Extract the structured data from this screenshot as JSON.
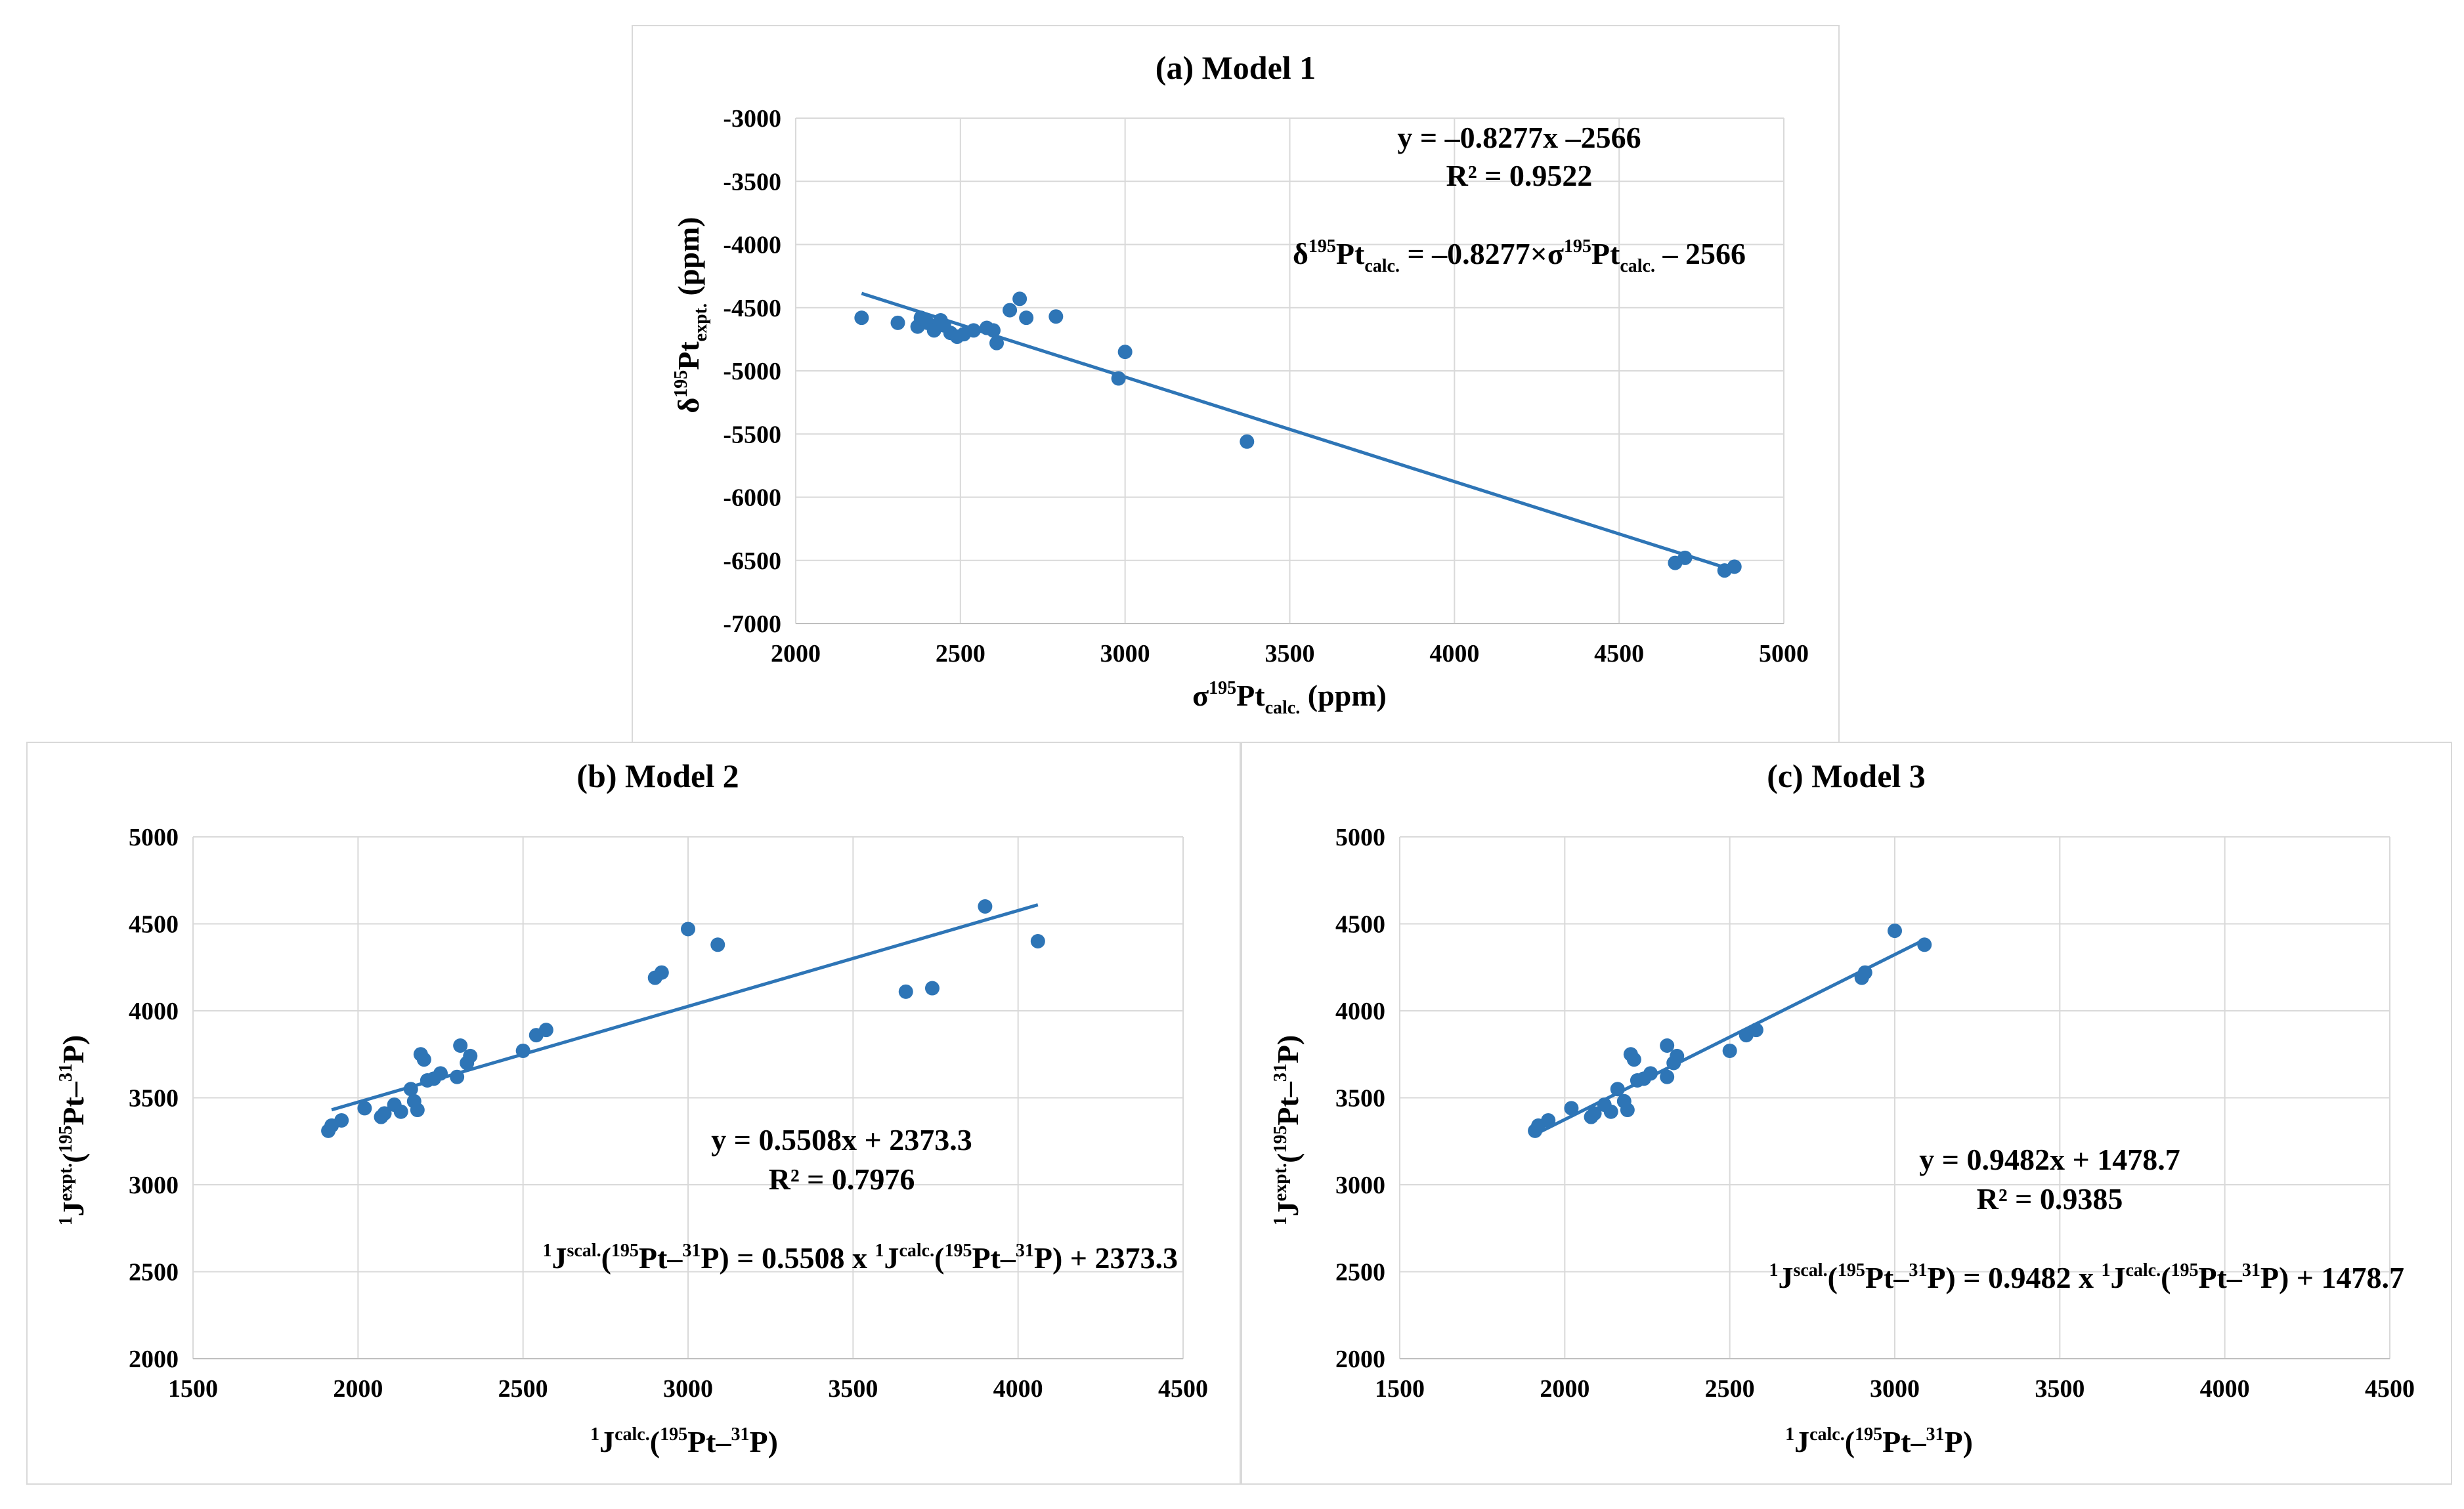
{
  "panels": {
    "a": {
      "title": "(a) Model 1",
      "xlabel_main": "σ",
      "xlabel_sup": "195",
      "xlabel_pt": "Pt",
      "xlabel_sub": "calc.",
      "xlabel_unit": " (ppm)",
      "ylabel_main": "δ",
      "ylabel_sup": "195",
      "ylabel_pt": "Pt",
      "ylabel_sub": "expt.",
      "ylabel_unit": " (ppm)",
      "eq_line1": "y = –0.8277x  –2566",
      "eq_line2": "R² = 0.9522",
      "eq3_delta": "δ",
      "eq3_sup1": "195",
      "eq3_pt1": "Pt",
      "eq3_sub1": "calc.",
      "eq3_mid": " = –0.8277×σ",
      "eq3_sup2": "195",
      "eq3_pt2": "Pt",
      "eq3_sub2": "calc.",
      "eq3_end": " – 2566"
    },
    "b": {
      "title": "(b) Model 2",
      "xlabel_pre": "1",
      "xlabel_j": "J",
      "xlabel_jsup": "calc.",
      "xlabel_paren": "(",
      "xlabel_s1": "195",
      "xlabel_pt": "Pt–",
      "xlabel_s2": "31",
      "xlabel_p": "P)",
      "ylabel_pre": "1",
      "ylabel_j": "J",
      "ylabel_jsup": "expt.",
      "ylabel_paren": "(",
      "ylabel_s1": "195",
      "ylabel_pt": "Pt–",
      "ylabel_s2": "31",
      "ylabel_p": "P)",
      "eq_line1": "y = 0.5508x + 2373.3",
      "eq_line2": "R² = 0.7976",
      "eq3_a": "1",
      "eq3_b": "J",
      "eq3_c": "scal.",
      "eq3_d": "(",
      "eq3_e": "195",
      "eq3_f": "Pt–",
      "eq3_g": "31",
      "eq3_h": "P) = 0.5508 x ",
      "eq3_i": "1",
      "eq3_j": "J",
      "eq3_k": "calc.",
      "eq3_l": "(",
      "eq3_m": "195",
      "eq3_n": "Pt–",
      "eq3_o": "31",
      "eq3_p": "P) + 2373.3"
    },
    "c": {
      "title": "(c) Model 3",
      "xlabel_pre": "1",
      "xlabel_j": "J",
      "xlabel_jsup": "calc.",
      "xlabel_paren": "(",
      "xlabel_s1": "195",
      "xlabel_pt": "Pt–",
      "xlabel_s2": "31",
      "xlabel_p": "P)",
      "ylabel_pre": "1",
      "ylabel_j": "J",
      "ylabel_jsup": "expt.",
      "ylabel_paren": "(",
      "ylabel_s1": "195",
      "ylabel_pt": "Pt–",
      "ylabel_s2": "31",
      "ylabel_p": "P)",
      "eq_line1": "y = 0.9482x + 1478.7",
      "eq_line2": "R² = 0.9385",
      "eq3_a": "1",
      "eq3_b": "J",
      "eq3_c": "scal.",
      "eq3_d": "(",
      "eq3_e": "195",
      "eq3_f": "Pt–",
      "eq3_g": "31",
      "eq3_h": "P) = 0.9482 x ",
      "eq3_i": "1",
      "eq3_j": "J",
      "eq3_k": "calc.",
      "eq3_l": "(",
      "eq3_m": "195",
      "eq3_n": "Pt–",
      "eq3_o": "31",
      "eq3_p": "P) + 1478.7"
    }
  },
  "colors": {
    "marker": "#2e75b6",
    "trendline": "#2e75b6",
    "grid": "#d9d9d9",
    "axis": "#bfbfbf"
  },
  "chart_data": [
    {
      "type": "scatter",
      "title": "(a) Model 1",
      "xlim": [
        2000,
        5000
      ],
      "ylim": [
        -7000,
        -3000
      ],
      "xticks": [
        2000,
        2500,
        3000,
        3500,
        4000,
        4500,
        5000
      ],
      "yticks": [
        -3000,
        -3500,
        -4000,
        -4500,
        -5000,
        -5500,
        -6000,
        -6500,
        -7000
      ],
      "trendline": {
        "slope": -0.8277,
        "intercept": -2566,
        "x_range": [
          2200,
          4860
        ]
      },
      "points": [
        [
          2200,
          -4580
        ],
        [
          2310,
          -4620
        ],
        [
          2370,
          -4650
        ],
        [
          2380,
          -4580
        ],
        [
          2400,
          -4620
        ],
        [
          2420,
          -4680
        ],
        [
          2440,
          -4600
        ],
        [
          2450,
          -4640
        ],
        [
          2470,
          -4700
        ],
        [
          2490,
          -4730
        ],
        [
          2510,
          -4710
        ],
        [
          2540,
          -4680
        ],
        [
          2580,
          -4660
        ],
        [
          2600,
          -4680
        ],
        [
          2610,
          -4780
        ],
        [
          2650,
          -4520
        ],
        [
          2680,
          -4430
        ],
        [
          2700,
          -4580
        ],
        [
          2790,
          -4570
        ],
        [
          2980,
          -5060
        ],
        [
          3000,
          -4850
        ],
        [
          3370,
          -5560
        ],
        [
          4670,
          -6520
        ],
        [
          4700,
          -6480
        ],
        [
          4820,
          -6580
        ],
        [
          4850,
          -6550
        ]
      ]
    },
    {
      "type": "scatter",
      "title": "(b) Model 2",
      "xlim": [
        1500,
        4500
      ],
      "ylim": [
        2000,
        5000
      ],
      "xticks": [
        1500,
        2000,
        2500,
        3000,
        3500,
        4000,
        4500
      ],
      "yticks": [
        2000,
        2500,
        3000,
        3500,
        4000,
        4500,
        5000
      ],
      "trendline": {
        "slope": 0.5508,
        "intercept": 2373.3,
        "x_range": [
          1920,
          4060
        ]
      },
      "points": [
        [
          1910,
          3310
        ],
        [
          1920,
          3340
        ],
        [
          1950,
          3370
        ],
        [
          2020,
          3440
        ],
        [
          2070,
          3390
        ],
        [
          2080,
          3410
        ],
        [
          2110,
          3460
        ],
        [
          2130,
          3420
        ],
        [
          2160,
          3550
        ],
        [
          2170,
          3480
        ],
        [
          2180,
          3430
        ],
        [
          2190,
          3750
        ],
        [
          2200,
          3720
        ],
        [
          2210,
          3600
        ],
        [
          2230,
          3610
        ],
        [
          2250,
          3640
        ],
        [
          2300,
          3620
        ],
        [
          2310,
          3800
        ],
        [
          2330,
          3700
        ],
        [
          2340,
          3740
        ],
        [
          2500,
          3770
        ],
        [
          2540,
          3860
        ],
        [
          2570,
          3890
        ],
        [
          2900,
          4190
        ],
        [
          2920,
          4220
        ],
        [
          3000,
          4470
        ],
        [
          3090,
          4380
        ],
        [
          3660,
          4110
        ],
        [
          3740,
          4130
        ],
        [
          3900,
          4600
        ],
        [
          4060,
          4400
        ]
      ]
    },
    {
      "type": "scatter",
      "title": "(c) Model 3",
      "xlim": [
        1500,
        4500
      ],
      "ylim": [
        2000,
        5000
      ],
      "xticks": [
        1500,
        2000,
        2500,
        3000,
        3500,
        4000,
        4500
      ],
      "yticks": [
        2000,
        2500,
        3000,
        3500,
        4000,
        4500,
        5000
      ],
      "trendline": {
        "slope": 0.9482,
        "intercept": 1478.7,
        "x_range": [
          1910,
          3090
        ]
      },
      "points": [
        [
          1910,
          3310
        ],
        [
          1920,
          3340
        ],
        [
          1950,
          3370
        ],
        [
          2020,
          3440
        ],
        [
          2080,
          3390
        ],
        [
          2090,
          3410
        ],
        [
          2120,
          3460
        ],
        [
          2140,
          3420
        ],
        [
          2160,
          3550
        ],
        [
          2180,
          3480
        ],
        [
          2190,
          3430
        ],
        [
          2200,
          3750
        ],
        [
          2210,
          3720
        ],
        [
          2220,
          3600
        ],
        [
          2240,
          3610
        ],
        [
          2260,
          3640
        ],
        [
          2310,
          3620
        ],
        [
          2310,
          3800
        ],
        [
          2330,
          3700
        ],
        [
          2340,
          3740
        ],
        [
          2500,
          3770
        ],
        [
          2550,
          3860
        ],
        [
          2580,
          3890
        ],
        [
          2900,
          4190
        ],
        [
          2910,
          4220
        ],
        [
          3000,
          4460
        ],
        [
          3090,
          4380
        ]
      ]
    }
  ]
}
